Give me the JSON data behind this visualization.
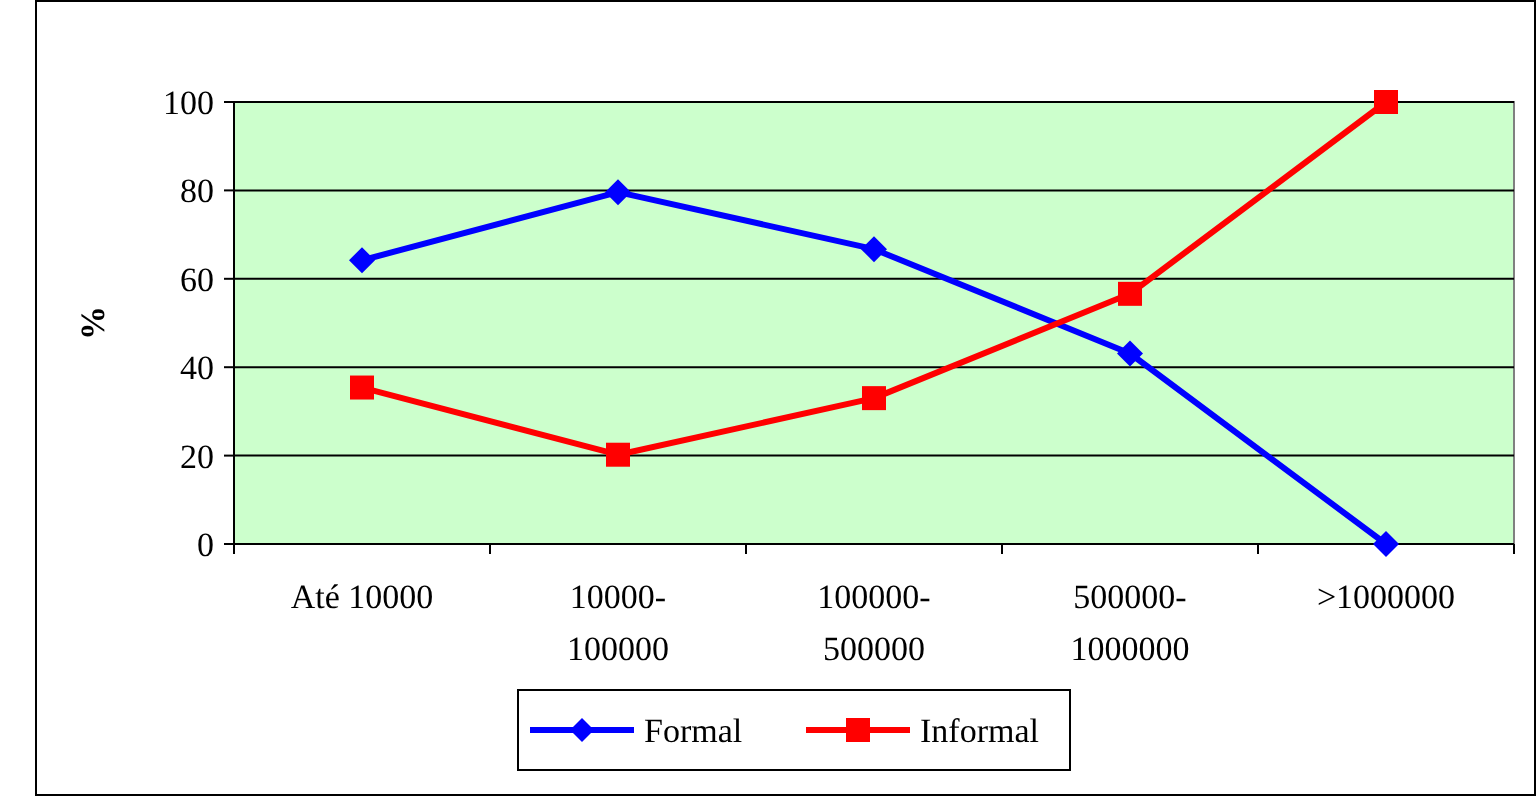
{
  "chart_data": {
    "type": "line",
    "ylabel": "%",
    "categories": [
      "Até 10000",
      "10000-100000",
      "100000-500000",
      "500000-1000000",
      ">1000000"
    ],
    "series": [
      {
        "name": "Formal",
        "color": "#0000ff",
        "marker": "diamond",
        "values": [
          64.2,
          79.6,
          66.7,
          43.1,
          0
        ]
      },
      {
        "name": "Informal",
        "color": "#ff0000",
        "marker": "square",
        "values": [
          35.4,
          20.2,
          33.0,
          56.6,
          100
        ]
      }
    ],
    "ylim": [
      0,
      100
    ],
    "yticks": [
      0,
      20,
      40,
      60,
      80,
      100
    ],
    "grid": "y",
    "legend": "bottom",
    "line_style": "solid"
  }
}
